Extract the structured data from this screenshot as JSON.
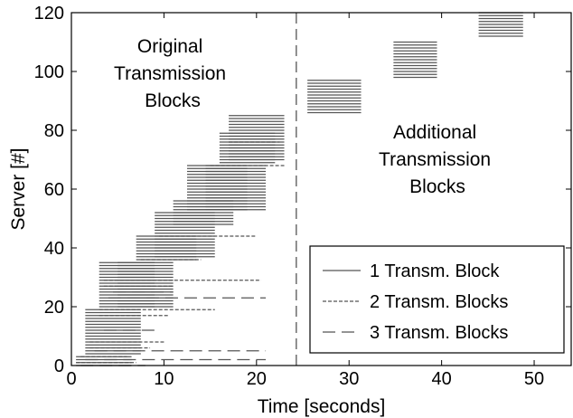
{
  "chart_data": {
    "type": "line",
    "title": "",
    "xlabel": "Time [seconds]",
    "ylabel": "Server [#]",
    "xlim": [
      0,
      54
    ],
    "ylim": [
      0,
      120
    ],
    "xticks": [
      0,
      10,
      20,
      30,
      40,
      50
    ],
    "yticks": [
      0,
      20,
      40,
      60,
      80,
      100,
      120
    ],
    "grid": false,
    "legend": "bottom-right",
    "divider_x": 24.3,
    "annotations": [
      {
        "id": "original",
        "lines": [
          "Original",
          "Transmission",
          "Blocks"
        ]
      },
      {
        "id": "additional",
        "lines": [
          "Additional",
          "Transmission",
          "Blocks"
        ]
      }
    ],
    "series": [
      {
        "name": "1 Transm. Block",
        "dash": "solid",
        "color": "#555555"
      },
      {
        "name": "2 Transm. Blocks",
        "dash": "dotted",
        "color": "#555555"
      },
      {
        "name": "3 Transm. Blocks",
        "dash": "dashed",
        "color": "#555555"
      }
    ],
    "blocks": [
      {
        "series": 0,
        "x0": 0.5,
        "x1": 6.5,
        "y0": 0,
        "y1": 3
      },
      {
        "series": 0,
        "x0": 1.5,
        "x1": 7.5,
        "y0": 4,
        "y1": 19
      },
      {
        "series": 0,
        "x0": 3.0,
        "x1": 9.0,
        "y0": 20,
        "y1": 35
      },
      {
        "series": 0,
        "x0": 5.0,
        "x1": 11.0,
        "y0": 20,
        "y1": 35
      },
      {
        "series": 0,
        "x0": 7.0,
        "x1": 13.5,
        "y0": 36,
        "y1": 44
      },
      {
        "series": 0,
        "x0": 9.0,
        "x1": 15.5,
        "y0": 37,
        "y1": 52
      },
      {
        "series": 0,
        "x0": 11.0,
        "x1": 17.5,
        "y0": 48,
        "y1": 56
      },
      {
        "series": 0,
        "x0": 12.5,
        "x1": 19.0,
        "y0": 53,
        "y1": 68
      },
      {
        "series": 0,
        "x0": 14.5,
        "x1": 21.0,
        "y0": 53,
        "y1": 68
      },
      {
        "series": 0,
        "x0": 16.0,
        "x1": 22.0,
        "y0": 69,
        "y1": 79
      },
      {
        "series": 0,
        "x0": 17.0,
        "x1": 23.0,
        "y0": 70,
        "y1": 85
      },
      {
        "series": 0,
        "x0": 25.5,
        "x1": 31.3,
        "y0": 86,
        "y1": 97
      },
      {
        "series": 0,
        "x0": 34.8,
        "x1": 39.5,
        "y0": 98,
        "y1": 110
      },
      {
        "series": 0,
        "x0": 44.0,
        "x1": 48.8,
        "y0": 112,
        "y1": 120
      }
    ],
    "segments": [
      {
        "series": 1,
        "x0": 0.5,
        "x1": 7.0,
        "y": 1
      },
      {
        "series": 1,
        "x0": 1.0,
        "x1": 6.0,
        "y": 3
      },
      {
        "series": 1,
        "x0": 2.0,
        "x1": 8.5,
        "y": 6
      },
      {
        "series": 1,
        "x0": 2.0,
        "x1": 10.0,
        "y": 8
      },
      {
        "series": 1,
        "x0": 3.0,
        "x1": 10.5,
        "y": 17
      },
      {
        "series": 1,
        "x0": 3.0,
        "x1": 15.5,
        "y": 19
      },
      {
        "series": 1,
        "x0": 3.5,
        "x1": 20.5,
        "y": 29
      },
      {
        "series": 1,
        "x0": 3.5,
        "x1": 11.0,
        "y": 27
      },
      {
        "series": 1,
        "x0": 7.5,
        "x1": 14.0,
        "y": 36
      },
      {
        "series": 1,
        "x0": 9.5,
        "x1": 20.0,
        "y": 44
      },
      {
        "series": 1,
        "x0": 15.0,
        "x1": 23.0,
        "y": 68
      },
      {
        "series": 1,
        "x0": 17.0,
        "x1": 22.5,
        "y": 76
      },
      {
        "series": 2,
        "x0": 1.0,
        "x1": 8.0,
        "y": 0
      },
      {
        "series": 2,
        "x0": 1.5,
        "x1": 21.0,
        "y": 2
      },
      {
        "series": 2,
        "x0": 2.5,
        "x1": 21.0,
        "y": 5
      },
      {
        "series": 2,
        "x0": 3.5,
        "x1": 9.0,
        "y": 12
      },
      {
        "series": 2,
        "x0": 4.0,
        "x1": 21.0,
        "y": 23
      },
      {
        "series": 2,
        "x0": 4.5,
        "x1": 11.0,
        "y": 25
      }
    ]
  }
}
